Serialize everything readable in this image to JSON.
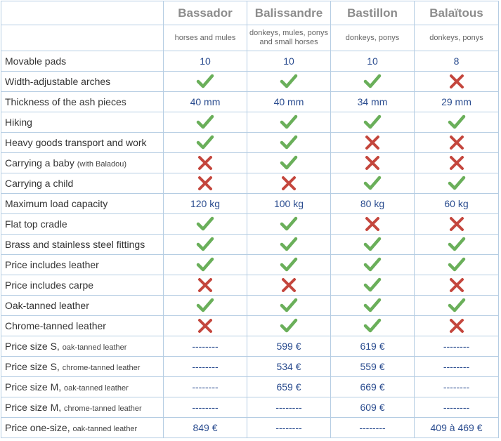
{
  "table": {
    "columns": [
      {
        "name": "Bassador",
        "use": "horses and mules"
      },
      {
        "name": "Balissandre",
        "use": "donkeys, mules, ponys and small horses"
      },
      {
        "name": "Bastillon",
        "use": "donkeys, ponys"
      },
      {
        "name": "Balaïtous",
        "use": "donkeys, ponys"
      }
    ],
    "rows": [
      {
        "label": "Movable pads",
        "cells": [
          "10",
          "10",
          "10",
          "8"
        ]
      },
      {
        "label": "Width-adjustable arches",
        "cells": [
          true,
          true,
          true,
          false
        ]
      },
      {
        "label": "Thickness of the ash pieces",
        "cells": [
          "40 mm",
          "40 mm",
          "34 mm",
          "29 mm"
        ]
      },
      {
        "label": "Hiking",
        "cells": [
          true,
          true,
          true,
          true
        ]
      },
      {
        "label": "Heavy goods transport and work",
        "cells": [
          true,
          true,
          false,
          false
        ]
      },
      {
        "label": "Carrying a baby",
        "note": "(with Baladou)",
        "cells": [
          false,
          true,
          false,
          false
        ]
      },
      {
        "label": "Carrying a child",
        "cells": [
          false,
          false,
          true,
          true
        ]
      },
      {
        "label": "Maximum load capacity",
        "cells": [
          "120 kg",
          "100 kg",
          "80 kg",
          "60 kg"
        ]
      },
      {
        "label": "Flat top cradle",
        "cells": [
          true,
          true,
          false,
          false
        ]
      },
      {
        "label": "Brass and stainless steel fittings",
        "cells": [
          true,
          true,
          true,
          true
        ]
      },
      {
        "label": "Price includes leather",
        "cells": [
          true,
          true,
          true,
          true
        ]
      },
      {
        "label": "Price includes carpe",
        "cells": [
          false,
          false,
          true,
          false
        ]
      },
      {
        "label": "Oak-tanned leather",
        "cells": [
          true,
          true,
          true,
          true
        ]
      },
      {
        "label": "Chrome-tanned leather",
        "cells": [
          false,
          true,
          true,
          false
        ]
      },
      {
        "label": "Price size S,",
        "note": "oak-tanned leather",
        "cells": [
          "--------",
          "599 €",
          "619 €",
          "--------"
        ]
      },
      {
        "label": "Price size S,",
        "note": "chrome-tanned leather",
        "cells": [
          "--------",
          "534 €",
          "559 €",
          "--------"
        ]
      },
      {
        "label": "Price size M,",
        "note": "oak-tanned leather",
        "cells": [
          "--------",
          "659 €",
          "669 €",
          "--------"
        ]
      },
      {
        "label": "Price size M,",
        "note": "chrome-tanned leather",
        "cells": [
          "--------",
          "--------",
          "609 €",
          "--------"
        ]
      },
      {
        "label": "Price one-size,",
        "note": "oak-tanned leather",
        "cells": [
          "849 €",
          "--------",
          "--------",
          "409 à 469 €"
        ]
      }
    ]
  }
}
